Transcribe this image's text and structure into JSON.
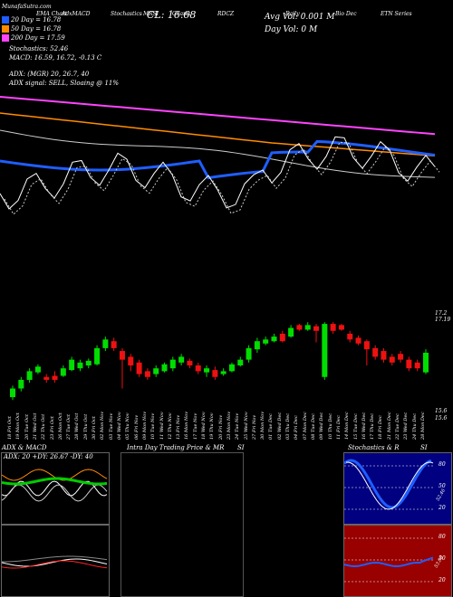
{
  "header": {
    "watermark": "MunafaSutra.com",
    "title_parts": [
      "EMA Chart",
      "AdxMACD",
      "Stochastics",
      "MRSI",
      "Charts",
      "RDCZ",
      "Daily",
      "Bio Dec",
      "ETN Series"
    ],
    "close": "CL: 16.68",
    "avg_vol": "Avg Vol: 0.001 M",
    "day_vol": "Day Vol: 0 M"
  },
  "legend": {
    "dma20": "20 Day = 16.78",
    "dma50": "50 Day = 16.78",
    "dma200": "200 Day = 17.59",
    "stoch": "Stochastics: 52.46",
    "macd": "MACD: 16.59, 16.72, -0.13 C",
    "adx": "ADX: (MGR) 20, 26.7, 40",
    "signal": "ADX signal: SELL, Sloaing @ 11%"
  },
  "colors": {
    "ema20": "#1f5eff",
    "ema50": "#ff8c00",
    "ema200": "#ff44ff",
    "price": "#ffffff",
    "up": "#00dd00",
    "down": "#ee1111",
    "stoch_bg": "#000080",
    "rsi_bg": "#990000"
  },
  "price_labels": [
    "17.2",
    "17.19",
    "15.6",
    "15.6"
  ],
  "dates": [
    "18 Fri Oct",
    "19 Mon Oct",
    "20 Tue Oct",
    "21 Wed Oct",
    "22 Thu Oct",
    "23 Fri Oct",
    "26 Mon Oct",
    "27 Tue Oct",
    "28 Wed Oct",
    "29 Thu Oct",
    "30 Fri Oct",
    "02 Mon Nov",
    "03 Tue Nov",
    "04 Wed Nov",
    "05 Thu Nov",
    "06 Fri Nov",
    "09 Mon Nov",
    "10 Tue Nov",
    "11 Wed Nov",
    "12 Thu Nov",
    "13 Fri Nov",
    "16 Mon Nov",
    "17 Tue Nov",
    "18 Wed Nov",
    "19 Thu Nov",
    "20 Fri Nov",
    "23 Mon Nov",
    "24 Tue Nov",
    "25 Wed Nov",
    "27 Fri Nov",
    "30 Mon Nov",
    "01 Tue Dec",
    "02 Wed Dec",
    "03 Thu Dec",
    "04 Fri Dec",
    "07 Mon Dec",
    "08 Tue Dec",
    "09 Wed Dec",
    "10 Thu Dec",
    "11 Fri Dec",
    "14 Mon Dec",
    "15 Tue Dec",
    "16 Wed Dec",
    "17 Thu Dec",
    "18 Fri Dec",
    "21 Mon Dec",
    "22 Tue Dec",
    "23 Wed Dec",
    "24 Thu Dec",
    "28 Mon Dec"
  ],
  "panels": {
    "adx_title": "ADX & MACD",
    "adx_values": "ADX: 20 +DY: 26.67 -DY: 40",
    "intraday_title": "Intra Day Trading Price & MR",
    "intraday_si": "SI",
    "stoch_title": "Stochastics & R",
    "stoch_si": "SI",
    "stoch_ticks": [
      "80",
      "50",
      "20"
    ],
    "stoch_value": "52.46",
    "rsi_ticks": [
      "80",
      "50",
      "20"
    ],
    "rsi_value": "53.00"
  },
  "chart_data": {
    "type": "candlestick",
    "y_axis_range": [
      15.6,
      17.2
    ],
    "candles": [
      [
        1,
        16.0,
        15.85,
        16.05,
        15.8
      ],
      [
        1,
        16.15,
        16.0,
        16.2,
        15.95
      ],
      [
        1,
        16.3,
        16.15,
        16.35,
        16.1
      ],
      [
        1,
        16.38,
        16.28,
        16.42,
        16.25
      ],
      [
        0,
        16.2,
        16.15,
        16.25,
        16.1
      ],
      [
        0,
        16.22,
        16.15,
        16.3,
        16.1
      ],
      [
        1,
        16.35,
        16.22,
        16.4,
        16.2
      ],
      [
        1,
        16.5,
        16.32,
        16.55,
        16.3
      ],
      [
        1,
        16.45,
        16.35,
        16.5,
        16.3
      ],
      [
        1,
        16.48,
        16.4,
        16.52,
        16.35
      ],
      [
        1,
        16.7,
        16.42,
        16.75,
        16.4
      ],
      [
        1,
        16.85,
        16.7,
        16.9,
        16.65
      ],
      [
        0,
        16.82,
        16.7,
        16.88,
        16.65
      ],
      [
        0,
        16.65,
        16.5,
        16.7,
        16.0
      ],
      [
        0,
        16.55,
        16.4,
        16.6,
        16.3
      ],
      [
        0,
        16.45,
        16.25,
        16.5,
        16.2
      ],
      [
        0,
        16.3,
        16.2,
        16.35,
        16.15
      ],
      [
        1,
        16.35,
        16.25,
        16.4,
        16.2
      ],
      [
        1,
        16.42,
        16.3,
        16.45,
        16.28
      ],
      [
        1,
        16.5,
        16.35,
        16.55,
        16.3
      ],
      [
        1,
        16.55,
        16.45,
        16.6,
        16.4
      ],
      [
        0,
        16.48,
        16.4,
        16.52,
        16.35
      ],
      [
        0,
        16.4,
        16.3,
        16.45,
        16.25
      ],
      [
        1,
        16.35,
        16.28,
        16.4,
        16.2
      ],
      [
        0,
        16.32,
        16.2,
        16.38,
        16.15
      ],
      [
        1,
        16.3,
        16.25,
        16.35,
        16.22
      ],
      [
        1,
        16.42,
        16.3,
        16.45,
        16.28
      ],
      [
        1,
        16.5,
        16.4,
        16.55,
        16.38
      ],
      [
        1,
        16.7,
        16.5,
        16.75,
        16.45
      ],
      [
        1,
        16.82,
        16.68,
        16.88,
        16.62
      ],
      [
        1,
        16.85,
        16.78,
        16.9,
        16.75
      ],
      [
        1,
        16.9,
        16.82,
        16.95,
        16.8
      ],
      [
        0,
        16.95,
        16.82,
        17.0,
        16.8
      ],
      [
        1,
        17.05,
        16.9,
        17.1,
        16.88
      ],
      [
        0,
        17.1,
        17.02,
        17.12,
        17.0
      ],
      [
        1,
        17.1,
        17.02,
        17.15,
        17.0
      ],
      [
        0,
        17.08,
        17.0,
        17.12,
        16.8
      ],
      [
        1,
        17.12,
        16.2,
        17.15,
        16.15
      ],
      [
        0,
        17.12,
        17.0,
        17.15,
        16.95
      ],
      [
        0,
        17.1,
        17.02,
        17.12,
        17.0
      ],
      [
        0,
        16.95,
        16.85,
        17.0,
        16.8
      ],
      [
        0,
        16.88,
        16.78,
        16.92,
        16.75
      ],
      [
        0,
        16.82,
        16.68,
        16.85,
        16.4
      ],
      [
        0,
        16.7,
        16.55,
        16.75,
        16.5
      ],
      [
        0,
        16.65,
        16.5,
        16.7,
        16.45
      ],
      [
        0,
        16.55,
        16.45,
        16.6,
        16.4
      ],
      [
        0,
        16.6,
        16.5,
        16.65,
        16.45
      ],
      [
        0,
        16.5,
        16.35,
        16.55,
        16.3
      ],
      [
        0,
        16.45,
        16.35,
        16.5,
        16.3
      ],
      [
        1,
        16.62,
        16.28,
        16.68,
        16.25
      ]
    ]
  }
}
